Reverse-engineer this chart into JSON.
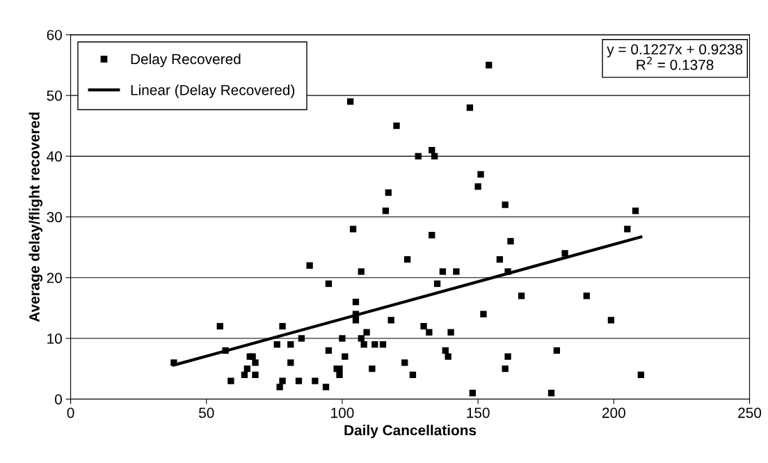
{
  "chart_data": {
    "type": "scatter",
    "xlabel": "Daily Cancellations",
    "ylabel": "Average delay/flight recovered",
    "series": [
      {
        "name": "Delay Recovered",
        "color": "#000000",
        "marker": "square",
        "x": [
          38,
          55,
          57,
          59,
          64,
          65,
          66,
          67,
          68,
          68,
          76,
          77,
          78,
          78,
          81,
          81,
          84,
          85,
          88,
          90,
          94,
          95,
          95,
          98,
          99,
          99,
          100,
          101,
          103,
          104,
          105,
          105,
          105,
          107,
          107,
          108,
          109,
          111,
          112,
          115,
          116,
          117,
          118,
          120,
          123,
          124,
          126,
          128,
          130,
          132,
          133,
          133,
          134,
          135,
          137,
          138,
          139,
          140,
          142,
          147,
          148,
          150,
          151,
          152,
          154,
          158,
          160,
          160,
          161,
          161,
          162,
          166,
          177,
          179,
          182,
          190,
          199,
          205,
          208,
          210
        ],
        "values": [
          6,
          12,
          8,
          3,
          4,
          5,
          7,
          7,
          6,
          4,
          9,
          2,
          3,
          12,
          6,
          9,
          3,
          10,
          22,
          3,
          2,
          8,
          19,
          5,
          4,
          5,
          10,
          7,
          49,
          28,
          16,
          14,
          13,
          21,
          10,
          9,
          11,
          5,
          9,
          9,
          31,
          34,
          13,
          45,
          6,
          23,
          4,
          40,
          12,
          11,
          27,
          41,
          40,
          19,
          21,
          8,
          7,
          11,
          21,
          48,
          1,
          35,
          37,
          14,
          55,
          23,
          32,
          5,
          21,
          7,
          26,
          17,
          1,
          8,
          24,
          17,
          13,
          28,
          31,
          4
        ]
      },
      {
        "name": "Linear (Delay Recovered)",
        "type": "line",
        "color": "#000000",
        "marker": "none",
        "line_style": "solid",
        "x": [
          38,
          210
        ],
        "values": [
          5.6,
          26.7
        ]
      }
    ],
    "xlim": [
      0,
      250
    ],
    "xticks": [
      0,
      50,
      100,
      150,
      200,
      250
    ],
    "ylim": [
      0,
      60
    ],
    "yticks": [
      0,
      10,
      20,
      30,
      40,
      50,
      60
    ],
    "grid": "y",
    "legend": "top left",
    "annotations": [
      "y = 0.1227x + 0.9238\nR$^{2}$ = 0.1378"
    ]
  }
}
